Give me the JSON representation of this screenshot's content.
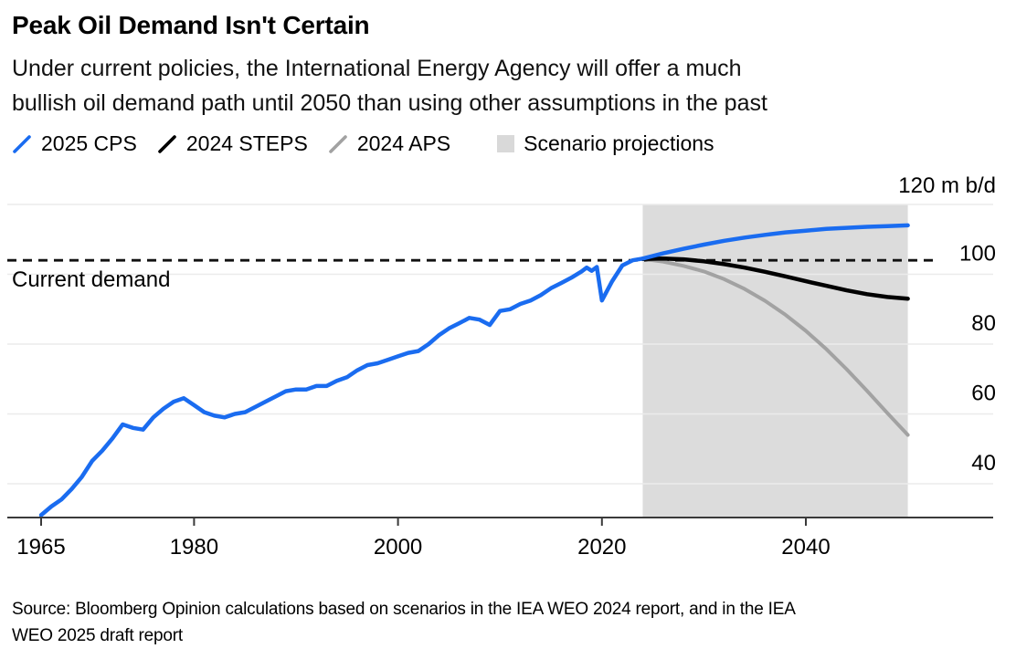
{
  "header": {
    "title": "Peak Oil Demand Isn't Certain",
    "subtitle_lines": [
      "Under current policies, the International Energy Agency will offer a much",
      "bullish oil demand path until 2050 than using other assumptions in the past"
    ]
  },
  "legend": {
    "items": [
      {
        "label": "2025 CPS",
        "type": "slash",
        "color": "#1a6cf0"
      },
      {
        "label": "2024 STEPS",
        "type": "slash",
        "color": "#000000"
      },
      {
        "label": "2024 APS",
        "type": "slash",
        "color": "#a2a2a2"
      },
      {
        "label": "Scenario projections",
        "type": "box",
        "color": "#d9d9d9"
      }
    ]
  },
  "chart_data": {
    "type": "line",
    "title": "Peak Oil Demand Isn't Certain",
    "unit": "m b/d",
    "y_axis_top_label": "120 m b/d",
    "gridline_values": [
      120,
      100,
      80,
      60,
      40
    ],
    "y_ticks": [
      100,
      80,
      60,
      40
    ],
    "x_ticks": [
      1965,
      1980,
      2000,
      2020,
      2040
    ],
    "xlim": [
      1965,
      2050
    ],
    "ylim": [
      30,
      120
    ],
    "grid": true,
    "legend_position": "top",
    "current_demand_label": "Current demand",
    "current_demand_value": 104,
    "projection_band": {
      "label": "Scenario projections",
      "start": 2024,
      "end": 2050,
      "color": "#dcdcdc"
    },
    "series": [
      {
        "name": "Historical demand",
        "color": "#1a6cf0",
        "width": 4.5,
        "points": [
          [
            1965,
            31
          ],
          [
            1966,
            33.5
          ],
          [
            1967,
            35.5
          ],
          [
            1968,
            38.5
          ],
          [
            1969,
            42
          ],
          [
            1970,
            46.5
          ],
          [
            1971,
            49.5
          ],
          [
            1972,
            53
          ],
          [
            1973,
            57
          ],
          [
            1974,
            56
          ],
          [
            1975,
            55.5
          ],
          [
            1976,
            59
          ],
          [
            1977,
            61.5
          ],
          [
            1978,
            63.5
          ],
          [
            1979,
            64.5
          ],
          [
            1980,
            62.5
          ],
          [
            1981,
            60.5
          ],
          [
            1982,
            59.5
          ],
          [
            1983,
            59
          ],
          [
            1984,
            60
          ],
          [
            1985,
            60.5
          ],
          [
            1986,
            62
          ],
          [
            1987,
            63.5
          ],
          [
            1988,
            65
          ],
          [
            1989,
            66.5
          ],
          [
            1990,
            67
          ],
          [
            1991,
            67
          ],
          [
            1992,
            68
          ],
          [
            1993,
            68
          ],
          [
            1994,
            69.5
          ],
          [
            1995,
            70.5
          ],
          [
            1996,
            72.5
          ],
          [
            1997,
            74
          ],
          [
            1998,
            74.5
          ],
          [
            1999,
            75.5
          ],
          [
            2000,
            76.5
          ],
          [
            2001,
            77.5
          ],
          [
            2002,
            78
          ],
          [
            2003,
            80
          ],
          [
            2004,
            82.5
          ],
          [
            2005,
            84.5
          ],
          [
            2006,
            86
          ],
          [
            2007,
            87.5
          ],
          [
            2008,
            87
          ],
          [
            2009,
            85.5
          ],
          [
            2010,
            89.5
          ],
          [
            2011,
            90
          ],
          [
            2012,
            91.5
          ],
          [
            2013,
            92.5
          ],
          [
            2014,
            94
          ],
          [
            2015,
            96
          ],
          [
            2016,
            97.5
          ],
          [
            2017,
            99
          ],
          [
            2018,
            100.8
          ],
          [
            2018.5,
            101.9
          ],
          [
            2019,
            101
          ],
          [
            2019.5,
            102.1
          ],
          [
            2020,
            92.5
          ],
          [
            2021,
            98
          ],
          [
            2022,
            102.5
          ],
          [
            2023,
            104
          ],
          [
            2024,
            104.5
          ]
        ]
      },
      {
        "name": "2025 CPS",
        "color": "#1a6cf0",
        "width": 4.5,
        "points": [
          [
            2024,
            104.5
          ],
          [
            2026,
            106
          ],
          [
            2028,
            107.3
          ],
          [
            2030,
            108.5
          ],
          [
            2032,
            109.6
          ],
          [
            2034,
            110.5
          ],
          [
            2036,
            111.3
          ],
          [
            2038,
            112
          ],
          [
            2040,
            112.5
          ],
          [
            2042,
            113
          ],
          [
            2044,
            113.3
          ],
          [
            2046,
            113.6
          ],
          [
            2048,
            113.8
          ],
          [
            2050,
            114
          ]
        ]
      },
      {
        "name": "2024 STEPS",
        "color": "#000000",
        "width": 4.5,
        "points": [
          [
            2024,
            104.4
          ],
          [
            2026,
            104.5
          ],
          [
            2028,
            104.3
          ],
          [
            2030,
            103.7
          ],
          [
            2032,
            102.9
          ],
          [
            2034,
            101.9
          ],
          [
            2036,
            100.7
          ],
          [
            2038,
            99.4
          ],
          [
            2040,
            98
          ],
          [
            2042,
            96.7
          ],
          [
            2044,
            95.4
          ],
          [
            2046,
            94.3
          ],
          [
            2048,
            93.5
          ],
          [
            2050,
            93
          ]
        ]
      },
      {
        "name": "2024 APS",
        "color": "#a2a2a2",
        "width": 4,
        "points": [
          [
            2024,
            104.4
          ],
          [
            2026,
            103.6
          ],
          [
            2028,
            102.4
          ],
          [
            2030,
            100.8
          ],
          [
            2032,
            98.6
          ],
          [
            2034,
            95.8
          ],
          [
            2036,
            92.4
          ],
          [
            2038,
            88.4
          ],
          [
            2040,
            83.8
          ],
          [
            2042,
            78.6
          ],
          [
            2044,
            72.8
          ],
          [
            2046,
            66.6
          ],
          [
            2048,
            60.2
          ],
          [
            2050,
            54
          ]
        ]
      }
    ]
  },
  "footer": {
    "source_lines": [
      "Source: Bloomberg Opinion calculations based on scenarios in the IEA WEO 2024 report, and in the IEA",
      "WEO 2025 draft report"
    ]
  }
}
